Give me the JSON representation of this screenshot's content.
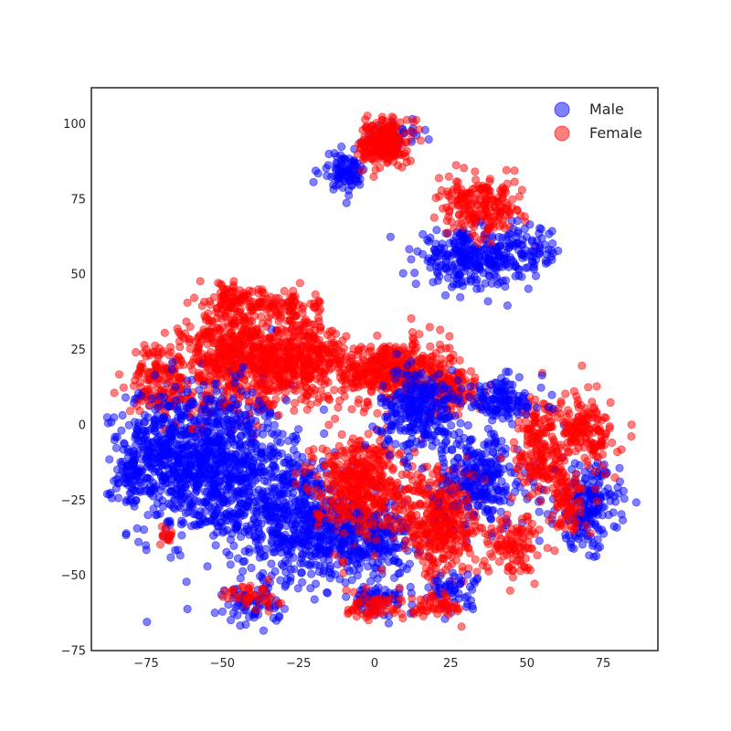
{
  "chart_data": {
    "type": "scatter",
    "title": "",
    "xlabel": "",
    "ylabel": "",
    "xlim": [
      -93,
      93
    ],
    "ylim": [
      -75,
      112
    ],
    "xticks": [
      -75,
      -50,
      -25,
      0,
      25,
      50,
      75
    ],
    "yticks": [
      -75,
      -50,
      -25,
      0,
      25,
      50,
      75,
      100
    ],
    "tick_labels_x": [
      "−75",
      "−50",
      "−25",
      "0",
      "25",
      "50",
      "75"
    ],
    "tick_labels_y": [
      "−75",
      "−50",
      "−25",
      "0",
      "25",
      "50",
      "75",
      "100"
    ],
    "grid": false,
    "legend_position": "top-right",
    "series": [
      {
        "name": "Male",
        "color": "#0000ff",
        "clusters": [
          {
            "cx": -55,
            "cy": -12,
            "sx": 17,
            "sy": 17,
            "n": 900
          },
          {
            "cx": -28,
            "cy": -30,
            "sx": 14,
            "sy": 14,
            "n": 500
          },
          {
            "cx": -70,
            "cy": -5,
            "sx": 8,
            "sy": 13,
            "n": 150
          },
          {
            "cx": -5,
            "cy": -38,
            "sx": 12,
            "sy": 9,
            "n": 350
          },
          {
            "cx": 15,
            "cy": 5,
            "sx": 9,
            "sy": 9,
            "n": 280
          },
          {
            "cx": 35,
            "cy": -18,
            "sx": 10,
            "sy": 11,
            "n": 260
          },
          {
            "cx": 70,
            "cy": -27,
            "sx": 7,
            "sy": 9,
            "n": 200
          },
          {
            "cx": 42,
            "cy": 8,
            "sx": 9,
            "sy": 5,
            "n": 120
          },
          {
            "cx": 30,
            "cy": 55,
            "sx": 11,
            "sy": 6,
            "n": 240
          },
          {
            "cx": 48,
            "cy": 57,
            "sx": 9,
            "sy": 6,
            "n": 110
          },
          {
            "cx": -10,
            "cy": 84,
            "sx": 5,
            "sy": 4,
            "n": 90
          },
          {
            "cx": 8,
            "cy": 96,
            "sx": 5,
            "sy": 3,
            "n": 30
          },
          {
            "cx": -40,
            "cy": -60,
            "sx": 6,
            "sy": 4,
            "n": 70
          },
          {
            "cx": 0,
            "cy": -58,
            "sx": 6,
            "sy": 3,
            "n": 60
          },
          {
            "cx": 25,
            "cy": -55,
            "sx": 7,
            "sy": 4,
            "n": 60
          },
          {
            "cx": -80,
            "cy": -15,
            "sx": 4,
            "sy": 8,
            "n": 60
          }
        ]
      },
      {
        "name": "Female",
        "color": "#ff0000",
        "clusters": [
          {
            "cx": -45,
            "cy": 22,
            "sx": 12,
            "sy": 12,
            "n": 550
          },
          {
            "cx": -25,
            "cy": 22,
            "sx": 10,
            "sy": 9,
            "n": 350
          },
          {
            "cx": -70,
            "cy": 15,
            "sx": 7,
            "sy": 8,
            "n": 150
          },
          {
            "cx": 5,
            "cy": 18,
            "sx": 13,
            "sy": 7,
            "n": 450
          },
          {
            "cx": 25,
            "cy": 12,
            "sx": 7,
            "sy": 6,
            "n": 120
          },
          {
            "cx": -5,
            "cy": -20,
            "sx": 10,
            "sy": 11,
            "n": 450
          },
          {
            "cx": 22,
            "cy": -32,
            "sx": 8,
            "sy": 12,
            "n": 380
          },
          {
            "cx": 55,
            "cy": -8,
            "sx": 6,
            "sy": 12,
            "n": 200
          },
          {
            "cx": 70,
            "cy": -3,
            "sx": 6,
            "sy": 8,
            "n": 150
          },
          {
            "cx": 63,
            "cy": -25,
            "sx": 4,
            "sy": 7,
            "n": 80
          },
          {
            "cx": 45,
            "cy": -40,
            "sx": 6,
            "sy": 7,
            "n": 110
          },
          {
            "cx": 35,
            "cy": 72,
            "sx": 9,
            "sy": 6,
            "n": 200
          },
          {
            "cx": 3,
            "cy": 94,
            "sx": 5,
            "sy": 5,
            "n": 260
          },
          {
            "cx": -47,
            "cy": 42,
            "sx": 5,
            "sy": 4,
            "n": 70
          },
          {
            "cx": -30,
            "cy": 40,
            "sx": 8,
            "sy": 3,
            "n": 80
          },
          {
            "cx": 0,
            "cy": -60,
            "sx": 8,
            "sy": 3,
            "n": 60
          },
          {
            "cx": 20,
            "cy": -60,
            "sx": 6,
            "sy": 3,
            "n": 50
          },
          {
            "cx": -40,
            "cy": -57,
            "sx": 6,
            "sy": 3,
            "n": 40
          },
          {
            "cx": -68,
            "cy": -37,
            "sx": 2,
            "sy": 2,
            "n": 15
          }
        ]
      }
    ],
    "legend": {
      "entries": [
        "Male",
        "Female"
      ]
    }
  }
}
